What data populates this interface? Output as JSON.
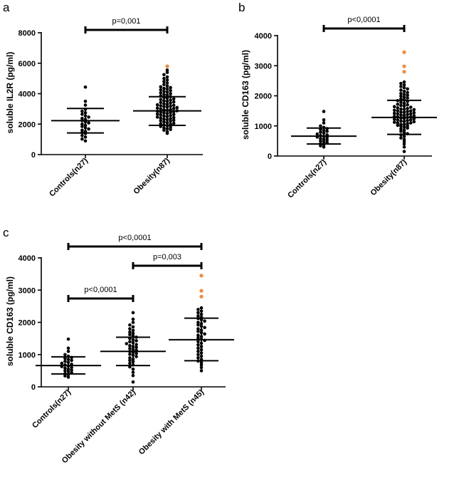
{
  "chart_data": [
    {
      "panel": "a",
      "type": "scatter",
      "ylabel": "soluble IL2R (pg/ml)",
      "ylim": [
        0,
        8000
      ],
      "yticks": [
        0,
        2000,
        4000,
        6000,
        8000
      ],
      "categories": [
        "Controls(n27)",
        "Obesity(n87)"
      ],
      "groups": [
        {
          "mean": 2230,
          "sd_low": 1420,
          "sd_high": 3030,
          "points": [
            900,
            1020,
            1150,
            1250,
            1380,
            1450,
            1520,
            1600,
            1680,
            1760,
            1850,
            1920,
            2000,
            2080,
            2150,
            2230,
            2300,
            2380,
            2460,
            2550,
            2650,
            2750,
            2850,
            2980,
            3250,
            3500,
            4430
          ],
          "highlight": []
        },
        {
          "mean": 2870,
          "sd_low": 1920,
          "sd_high": 3800,
          "points": [
            1400,
            1500,
            1600,
            1650,
            1700,
            1750,
            1800,
            1850,
            1900,
            1950,
            2000,
            2030,
            2060,
            2100,
            2150,
            2200,
            2230,
            2260,
            2300,
            2330,
            2360,
            2400,
            2430,
            2460,
            2500,
            2530,
            2560,
            2600,
            2630,
            2660,
            2700,
            2730,
            2760,
            2790,
            2820,
            2850,
            2880,
            2910,
            2940,
            2970,
            3000,
            3030,
            3060,
            3090,
            3120,
            3150,
            3180,
            3210,
            3240,
            3270,
            3300,
            3340,
            3380,
            3420,
            3460,
            3500,
            3540,
            3580,
            3620,
            3660,
            3700,
            3750,
            3800,
            3850,
            3900,
            3950,
            4000,
            4050,
            4100,
            4150,
            4200,
            4250,
            4300,
            4350,
            4400,
            4450,
            4500,
            4600,
            4700,
            4800,
            4900,
            5000,
            5100,
            5250,
            5400,
            5550
          ],
          "highlight": [
            5800
          ]
        }
      ],
      "brackets": [
        {
          "from": 0,
          "to": 1,
          "label": "p=0,001"
        }
      ]
    },
    {
      "panel": "b",
      "type": "scatter",
      "ylabel": "soluble CD163 (pg/ml)",
      "ylim": [
        0,
        4000
      ],
      "yticks": [
        0,
        1000,
        2000,
        3000,
        4000
      ],
      "categories": [
        "Controls(n27)",
        "Obesity(n87)"
      ],
      "groups": [
        {
          "mean": 660,
          "sd_low": 400,
          "sd_high": 930,
          "points": [
            300,
            340,
            380,
            410,
            440,
            470,
            500,
            520,
            550,
            580,
            600,
            630,
            650,
            680,
            700,
            730,
            760,
            790,
            820,
            850,
            880,
            910,
            950,
            1000,
            1100,
            1200,
            1480
          ],
          "highlight": []
        },
        {
          "mean": 1280,
          "sd_low": 720,
          "sd_high": 1850,
          "points": [
            150,
            300,
            400,
            480,
            550,
            600,
            650,
            700,
            740,
            780,
            820,
            860,
            900,
            930,
            960,
            990,
            1020,
            1050,
            1080,
            1100,
            1120,
            1140,
            1160,
            1180,
            1200,
            1220,
            1240,
            1260,
            1280,
            1300,
            1320,
            1340,
            1360,
            1380,
            1400,
            1420,
            1440,
            1460,
            1480,
            1500,
            1520,
            1540,
            1560,
            1580,
            1600,
            1620,
            1640,
            1660,
            1680,
            1700,
            1720,
            1750,
            1780,
            1810,
            1840,
            1870,
            1900,
            1930,
            1960,
            1990,
            2020,
            2050,
            2080,
            2110,
            2150,
            2190,
            2230,
            2270,
            2310,
            2360,
            2410,
            2460,
            1000,
            1050,
            1100,
            1150,
            1200,
            1250,
            1300,
            1350,
            1400,
            1450,
            1500,
            1550
          ],
          "highlight": [
            2800,
            2980,
            3450
          ]
        }
      ],
      "brackets": [
        {
          "from": 0,
          "to": 1,
          "label": "p<0,0001"
        }
      ]
    },
    {
      "panel": "c",
      "type": "scatter",
      "ylabel": "soluble CD163 (pg/ml)",
      "ylim": [
        0,
        4000
      ],
      "yticks": [
        0,
        1000,
        2000,
        3000,
        4000
      ],
      "categories": [
        "Controls(n27)",
        "Obesity without MetS (n42)",
        "Obesity with MetS (n45)"
      ],
      "groups": [
        {
          "mean": 660,
          "sd_low": 400,
          "sd_high": 930,
          "points": [
            300,
            340,
            380,
            410,
            440,
            470,
            500,
            520,
            550,
            580,
            600,
            630,
            650,
            680,
            700,
            730,
            760,
            790,
            820,
            850,
            880,
            910,
            950,
            1000,
            1100,
            1200,
            1480
          ],
          "highlight": []
        },
        {
          "mean": 1100,
          "sd_low": 660,
          "sd_high": 1540,
          "points": [
            150,
            350,
            450,
            550,
            620,
            680,
            730,
            780,
            820,
            860,
            900,
            940,
            980,
            1010,
            1040,
            1070,
            1100,
            1130,
            1160,
            1190,
            1220,
            1250,
            1280,
            1310,
            1340,
            1370,
            1400,
            1430,
            1460,
            1500,
            1540,
            1580,
            1620,
            1660,
            1700,
            1750,
            1800,
            1860,
            1920,
            2000,
            2100,
            2300
          ],
          "highlight": []
        },
        {
          "mean": 1460,
          "sd_low": 810,
          "sd_high": 2130,
          "points": [
            500,
            600,
            680,
            750,
            800,
            850,
            900,
            950,
            1000,
            1050,
            1100,
            1150,
            1200,
            1250,
            1300,
            1350,
            1400,
            1440,
            1480,
            1520,
            1560,
            1600,
            1640,
            1680,
            1720,
            1760,
            1800,
            1840,
            1880,
            1920,
            1960,
            2000,
            2040,
            2080,
            2120,
            2160,
            2200,
            2250,
            2300,
            2350,
            2400,
            2450
          ],
          "highlight": [
            2800,
            2980,
            3450
          ]
        }
      ],
      "brackets": [
        {
          "from": 0,
          "to": 2,
          "label": "p<0,0001"
        },
        {
          "from": 1,
          "to": 2,
          "label": "p=0,003"
        },
        {
          "from": 0,
          "to": 1,
          "label": "p<0,0001"
        }
      ]
    }
  ],
  "colors": {
    "point": "#000000",
    "highlight": "#f58a3c"
  }
}
